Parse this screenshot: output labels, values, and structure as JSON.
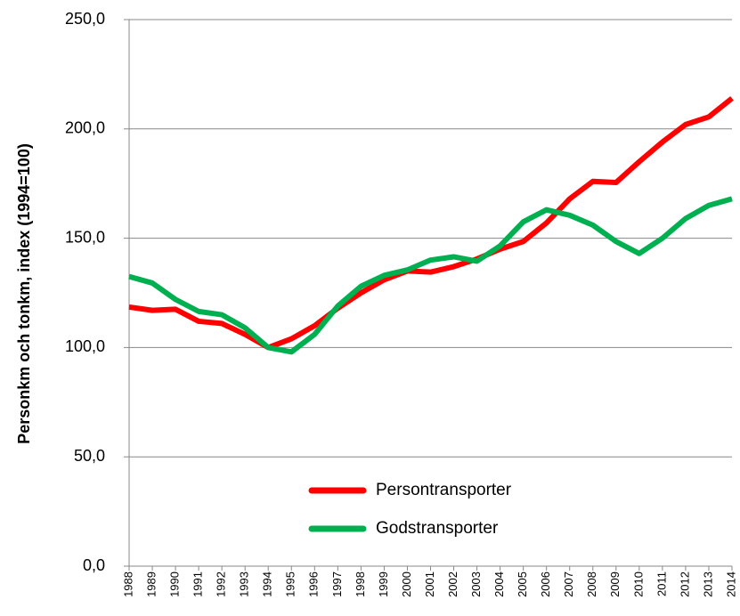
{
  "chart_data": {
    "type": "line",
    "y_label": "Personkm och tonkm, index (1994=100)",
    "categories": [
      "1988",
      "1989",
      "1990",
      "1991",
      "1992",
      "1993",
      "1994",
      "1995",
      "1996",
      "1997",
      "1998",
      "1999",
      "2000",
      "2001",
      "2002",
      "2003",
      "2004",
      "2005",
      "2006",
      "2007",
      "2008",
      "2009",
      "2010",
      "2011",
      "2012",
      "2013",
      "2014"
    ],
    "series": [
      {
        "name": "Persontransporter",
        "color": "#ff0000",
        "values": [
          118.5,
          117,
          117.5,
          112,
          111,
          106,
          100,
          104,
          110,
          118,
          125,
          131,
          135,
          134.5,
          137,
          140.5,
          145,
          148.5,
          157,
          168,
          176,
          175.5,
          185,
          194,
          202,
          205.5,
          214
        ]
      },
      {
        "name": "Godstransporter",
        "color": "#00b050",
        "values": [
          132.5,
          129.5,
          122,
          116.5,
          115,
          109,
          100,
          98,
          106,
          119,
          128,
          133,
          135.5,
          140,
          141.5,
          139.5,
          146.5,
          157.5,
          163,
          160.5,
          156,
          148.5,
          143,
          150,
          159,
          165,
          168
        ]
      }
    ],
    "ylim": [
      0,
      250
    ],
    "yticks": [
      {
        "value": 0,
        "label": "0,0"
      },
      {
        "value": 50,
        "label": "50,0"
      },
      {
        "value": 100,
        "label": "100,0"
      },
      {
        "value": 150,
        "label": "150,0"
      },
      {
        "value": 200,
        "label": "200,0"
      },
      {
        "value": 250,
        "label": "250,0"
      }
    ],
    "grid": true,
    "legend": "lower center"
  }
}
